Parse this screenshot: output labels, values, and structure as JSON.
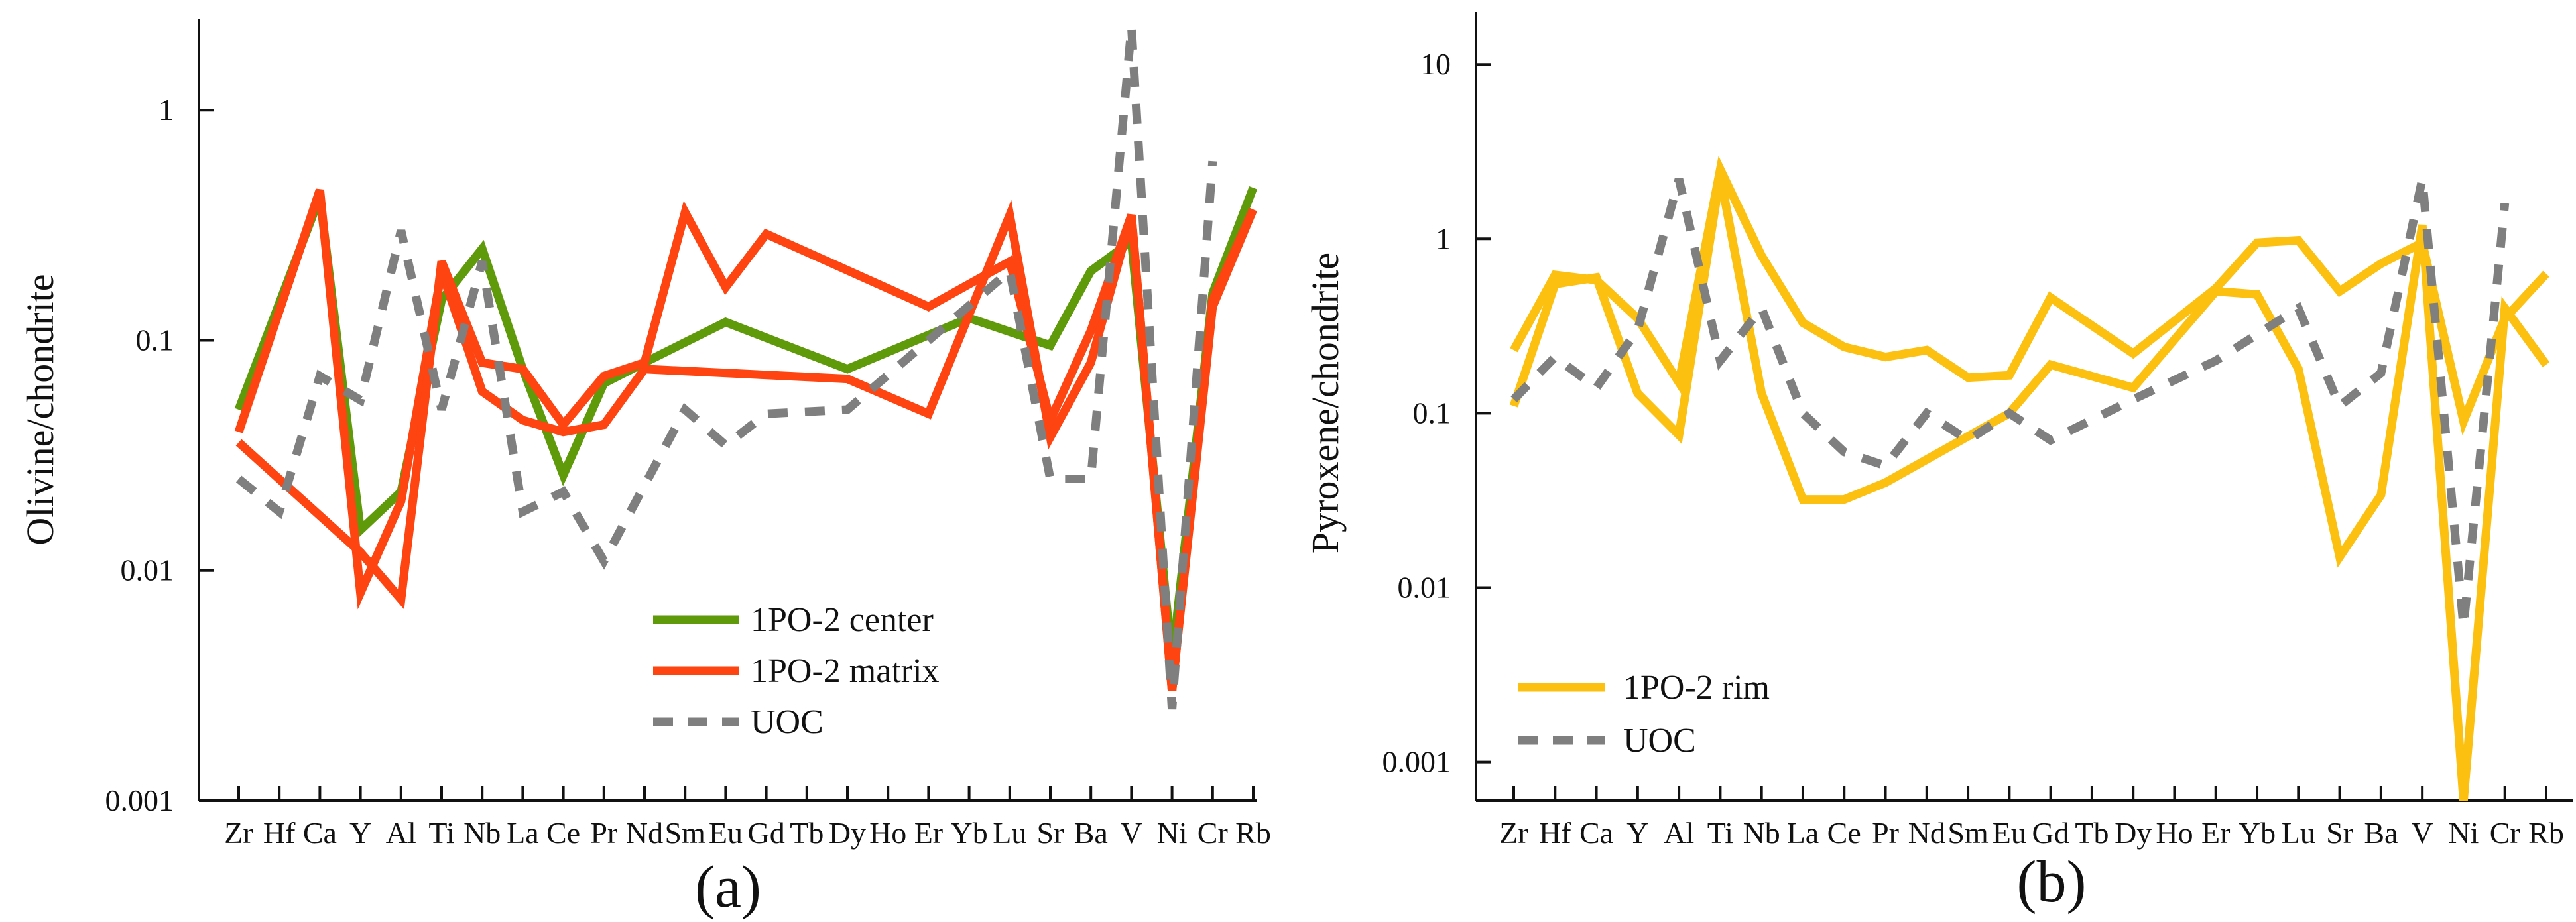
{
  "chart_data": [
    {
      "type": "line",
      "panel_label": "(a)",
      "ylabel": "Olivine/chondrite",
      "yscale": "log",
      "ylim": [
        0.001,
        2.5
      ],
      "yticks": [
        0.001,
        0.01,
        0.1,
        1
      ],
      "ytick_labels": [
        "0.001",
        "0.01",
        "0.1",
        "1"
      ],
      "categories": [
        "Zr",
        "Hf",
        "Ca",
        "Y",
        "Al",
        "Ti",
        "Nb",
        "La",
        "Ce",
        "Pr",
        "Nd",
        "Sm",
        "Eu",
        "Gd",
        "Tb",
        "Dy",
        "Ho",
        "Er",
        "Yb",
        "Lu",
        "Sr",
        "Ba",
        "V",
        "Ni",
        "Cr",
        "Rb"
      ],
      "legend_position": "bottom-center",
      "series": [
        {
          "name": "1PO-2 center",
          "color": "#5f9a0a",
          "style": "solid",
          "segments": [
            [
              [
                0,
                0.05
              ],
              [
                2,
                0.42
              ],
              [
                3,
                0.015
              ],
              [
                4,
                0.022
              ],
              [
                5,
                0.15
              ],
              [
                6,
                0.25
              ],
              [
                7,
                0.075
              ],
              [
                8,
                0.026
              ],
              [
                9,
                0.065
              ],
              [
                10,
                0.08
              ],
              [
                12,
                0.12
              ],
              [
                15,
                0.075
              ],
              [
                18,
                0.125
              ],
              [
                20,
                0.095
              ],
              [
                21,
                0.2
              ],
              [
                22,
                0.27
              ],
              [
                23,
                0.004
              ],
              [
                24,
                0.16
              ],
              [
                25,
                0.46
              ]
            ]
          ]
        },
        {
          "name": "1PO-2 matrix",
          "color": "#fd4411",
          "style": "solid",
          "segments": [
            [
              [
                0,
                0.04
              ],
              [
                2,
                0.45
              ],
              [
                3,
                0.008
              ],
              [
                4,
                0.02
              ],
              [
                5,
                0.2
              ],
              [
                6,
                0.06
              ],
              [
                7,
                0.045
              ],
              [
                8,
                0.04
              ],
              [
                9,
                0.043
              ],
              [
                10,
                0.075
              ],
              [
                15,
                0.068
              ],
              [
                17,
                0.048
              ],
              [
                19,
                0.35
              ],
              [
                20,
                0.038
              ],
              [
                21,
                0.08
              ],
              [
                22,
                0.35
              ],
              [
                23,
                0.003
              ],
              [
                24,
                0.15
              ],
              [
                25,
                0.37
              ]
            ],
            [
              [
                0,
                0.036
              ],
              [
                3,
                0.012
              ],
              [
                4,
                0.0075
              ],
              [
                5,
                0.22
              ],
              [
                6,
                0.08
              ],
              [
                7,
                0.075
              ],
              [
                8,
                0.043
              ],
              [
                9,
                0.07
              ],
              [
                10,
                0.08
              ],
              [
                11,
                0.36
              ],
              [
                12,
                0.17
              ],
              [
                13,
                0.29
              ],
              [
                17,
                0.14
              ],
              [
                19,
                0.22
              ],
              [
                20,
                0.045
              ],
              [
                21,
                0.11
              ],
              [
                22,
                0.35
              ],
              [
                23,
                0.003
              ],
              [
                24,
                0.14
              ],
              [
                25,
                0.37
              ]
            ]
          ]
        },
        {
          "name": "UOC",
          "color": "#7f7f7f",
          "style": "dashed",
          "segments": [
            [
              [
                0,
                0.025
              ],
              [
                1,
                0.018
              ],
              [
                2,
                0.07
              ],
              [
                3,
                0.055
              ],
              [
                4,
                0.3
              ],
              [
                5,
                0.05
              ],
              [
                6,
                0.22
              ],
              [
                7,
                0.018
              ],
              [
                8,
                0.022
              ],
              [
                9,
                0.011
              ],
              [
                11,
                0.05
              ],
              [
                12,
                0.035
              ],
              [
                13,
                0.048
              ],
              [
                15,
                0.05
              ],
              [
                17,
                0.1
              ],
              [
                19,
                0.2
              ],
              [
                20,
                0.025
              ],
              [
                21,
                0.025
              ],
              [
                22,
                2.3
              ],
              [
                23,
                0.0025
              ],
              [
                24,
                0.6
              ]
            ]
          ]
        }
      ]
    },
    {
      "type": "line",
      "panel_label": "(b)",
      "ylabel": "Pyroxene/chondrite",
      "yscale": "log",
      "ylim": [
        0.0006,
        20
      ],
      "yticks": [
        0.001,
        0.01,
        0.1,
        1,
        10
      ],
      "ytick_labels": [
        "0.001",
        "0.01",
        "0.1",
        "1",
        "10"
      ],
      "categories": [
        "Zr",
        "Hf",
        "Ca",
        "Y",
        "Al",
        "Ti",
        "Nb",
        "La",
        "Ce",
        "Pr",
        "Nd",
        "Sm",
        "Eu",
        "Gd",
        "Tb",
        "Dy",
        "Ho",
        "Er",
        "Yb",
        "Lu",
        "Sr",
        "Ba",
        "V",
        "Ni",
        "Cr",
        "Rb"
      ],
      "legend_position": "bottom-left",
      "series": [
        {
          "name": "1PO-2 rim",
          "color": "#fcc010",
          "style": "solid",
          "segments": [
            [
              [
                0,
                0.23
              ],
              [
                1,
                0.62
              ],
              [
                2,
                0.58
              ],
              [
                3,
                0.35
              ],
              [
                4,
                0.15
              ],
              [
                5,
                2.5
              ],
              [
                6,
                0.8
              ],
              [
                7,
                0.33
              ],
              [
                8,
                0.24
              ],
              [
                9,
                0.21
              ],
              [
                10,
                0.23
              ],
              [
                11,
                0.16
              ],
              [
                12,
                0.165
              ],
              [
                13,
                0.46
              ],
              [
                15,
                0.22
              ],
              [
                17,
                0.52
              ],
              [
                18,
                0.95
              ],
              [
                19,
                0.98
              ],
              [
                20,
                0.5
              ],
              [
                21,
                0.72
              ],
              [
                22,
                0.95
              ],
              [
                23,
                0.09
              ],
              [
                24,
                0.35
              ],
              [
                25,
                0.63
              ]
            ],
            [
              [
                0,
                0.11
              ],
              [
                1,
                0.55
              ],
              [
                2,
                0.6
              ],
              [
                3,
                0.13
              ],
              [
                4,
                0.075
              ],
              [
                5,
                2.3
              ],
              [
                6,
                0.13
              ],
              [
                7,
                0.032
              ],
              [
                8,
                0.032
              ],
              [
                9,
                0.04
              ],
              [
                12,
                0.1
              ],
              [
                13,
                0.19
              ],
              [
                15,
                0.14
              ],
              [
                17,
                0.5
              ],
              [
                18,
                0.48
              ],
              [
                19,
                0.18
              ],
              [
                20,
                0.015
              ],
              [
                21,
                0.034
              ],
              [
                22,
                1.2
              ],
              [
                23,
                0.0006
              ],
              [
                24,
                0.4
              ],
              [
                25,
                0.19
              ]
            ]
          ]
        },
        {
          "name": "UOC",
          "color": "#7f7f7f",
          "style": "dashed",
          "segments": [
            [
              [
                0,
                0.12
              ],
              [
                1,
                0.21
              ],
              [
                2,
                0.14
              ],
              [
                3,
                0.3
              ],
              [
                4,
                2.2
              ],
              [
                5,
                0.2
              ],
              [
                6,
                0.4
              ],
              [
                7,
                0.1
              ],
              [
                8,
                0.06
              ],
              [
                9,
                0.05
              ],
              [
                10,
                0.1
              ],
              [
                11,
                0.07
              ],
              [
                12,
                0.1
              ],
              [
                13,
                0.07
              ],
              [
                15,
                0.12
              ],
              [
                17,
                0.2
              ],
              [
                19,
                0.4
              ],
              [
                20,
                0.11
              ],
              [
                21,
                0.17
              ],
              [
                22,
                2.2
              ],
              [
                23,
                0.006
              ],
              [
                24,
                1.6
              ]
            ]
          ]
        }
      ]
    }
  ]
}
